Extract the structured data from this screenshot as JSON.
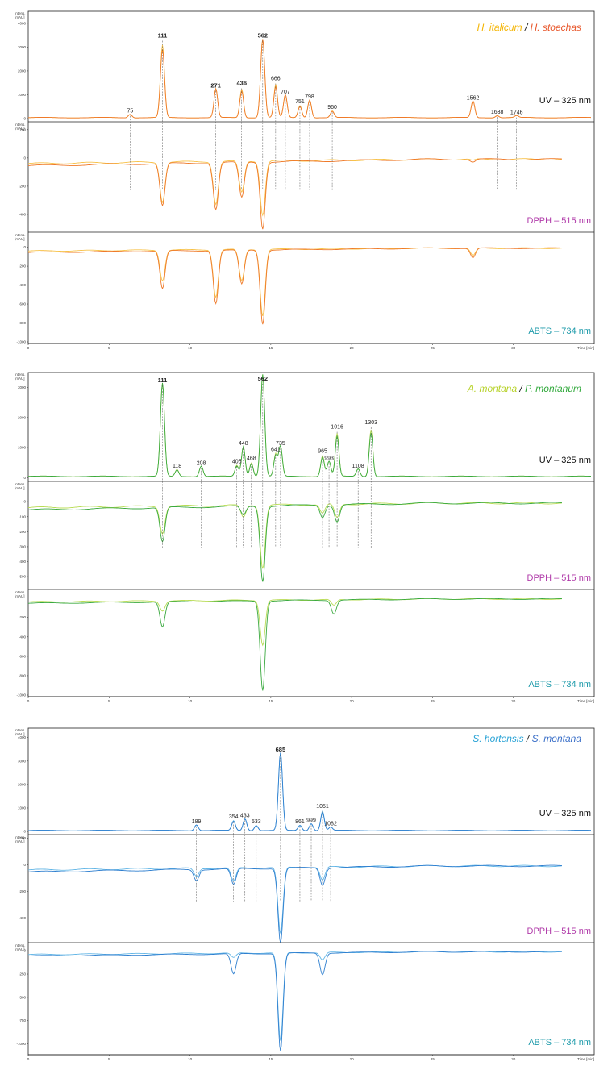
{
  "figure": {
    "y_axis_label_line1": "Intens.",
    "y_axis_label_line2": "[mAU]",
    "x_axis_label": "Time [min]",
    "x_ticks": [
      "0",
      "5",
      "10",
      "15",
      "20",
      "25",
      "30"
    ],
    "x_range": [
      0,
      35
    ],
    "colors": {
      "uv_label": "#111111",
      "dpph_label": "#b03aa9",
      "abts_label": "#1f9bab"
    }
  },
  "chart_data": [
    {
      "type": "line",
      "legend": {
        "sample_a": "H. italicum",
        "separator": " / ",
        "sample_b": "H. stoechas",
        "color_a": "#f4b400",
        "color_b": "#e8562a"
      },
      "series_colors": [
        "#f7c24a",
        "#ef7a2a"
      ],
      "detectors": [
        {
          "label": "UV – 325 nm",
          "ylim": [
            -100,
            4500
          ],
          "ticks": [
            "4000",
            "3000",
            "2000",
            "1000",
            "0"
          ],
          "tick_values": [
            4000,
            3000,
            2000,
            1000,
            0
          ]
        },
        {
          "label": "DPPH – 515 nm",
          "ylim": [
            -520,
            250
          ],
          "ticks": [
            "200",
            "0",
            "-200",
            "-400"
          ],
          "tick_values": [
            200,
            0,
            -200,
            -400
          ]
        },
        {
          "label": "ABTS – 734 nm",
          "ylim": [
            -1000,
            150
          ],
          "ticks": [
            "0",
            "-200",
            "-400",
            "-600",
            "-800",
            "-1000"
          ],
          "tick_values": [
            0,
            -200,
            -400,
            -600,
            -800,
            -1000
          ]
        }
      ],
      "peaks": [
        {
          "label": "75",
          "t": 6.3,
          "uv": 150,
          "bold": false
        },
        {
          "label": "111",
          "t": 8.3,
          "uv": 3300,
          "bold": true
        },
        {
          "label": "271",
          "t": 11.6,
          "uv": 1200,
          "bold": true
        },
        {
          "label": "436",
          "t": 13.2,
          "uv": 1300,
          "bold": true
        },
        {
          "label": "562",
          "t": 14.5,
          "uv": 3300,
          "bold": true
        },
        {
          "label": "666",
          "t": 15.3,
          "uv": 1500,
          "bold": false
        },
        {
          "label": "707",
          "t": 15.9,
          "uv": 950,
          "bold": false
        },
        {
          "label": "751",
          "t": 16.8,
          "uv": 550,
          "bold": false
        },
        {
          "label": "798",
          "t": 17.4,
          "uv": 750,
          "bold": false
        },
        {
          "label": "960",
          "t": 18.8,
          "uv": 300,
          "bold": false
        },
        {
          "label": "1562",
          "t": 27.5,
          "uv": 700,
          "bold": false
        },
        {
          "label": "1638",
          "t": 29.0,
          "uv": 100,
          "bold": false
        },
        {
          "label": "1746",
          "t": 30.2,
          "uv": 80,
          "bold": false
        }
      ],
      "dpph_dips": [
        {
          "t": 8.3,
          "a": -280,
          "b": -300
        },
        {
          "t": 11.6,
          "a": -300,
          "b": -330
        },
        {
          "t": 13.2,
          "a": -220,
          "b": -250
        },
        {
          "t": 14.5,
          "a": -380,
          "b": -470
        },
        {
          "t": 27.5,
          "a": -10,
          "b": -20
        }
      ],
      "abts_dips": [
        {
          "t": 8.3,
          "a": -320,
          "b": -400
        },
        {
          "t": 11.6,
          "a": -500,
          "b": -560
        },
        {
          "t": 13.2,
          "a": -330,
          "b": -360
        },
        {
          "t": 14.5,
          "a": -700,
          "b": -780
        },
        {
          "t": 27.5,
          "a": -80,
          "b": -100
        }
      ]
    },
    {
      "type": "line",
      "legend": {
        "sample_a": "A. montana",
        "separator": " / ",
        "sample_b": "P. montanum",
        "color_a": "#b7d22a",
        "color_b": "#2fa83a"
      },
      "series_colors": [
        "#b9dc55",
        "#3aa93f"
      ],
      "detectors": [
        {
          "label": "UV – 325 nm",
          "ylim": [
            -100,
            3500
          ],
          "ticks": [
            "3000",
            "2000",
            "1000",
            "0"
          ],
          "tick_values": [
            3000,
            2000,
            1000,
            0
          ]
        },
        {
          "label": "DPPH – 515 nm",
          "ylim": [
            -580,
            130
          ],
          "ticks": [
            "0",
            "-100",
            "-200",
            "-300",
            "-400",
            "-500"
          ],
          "tick_values": [
            0,
            -100,
            -200,
            -300,
            -400,
            -500
          ]
        },
        {
          "label": "ABTS – 734 nm",
          "ylim": [
            -1000,
            80
          ],
          "ticks": [
            "-200",
            "-400",
            "-600",
            "-800",
            "-1000"
          ],
          "tick_values": [
            -200,
            -400,
            -600,
            -800,
            -1000
          ]
        }
      ],
      "peaks": [
        {
          "label": "111",
          "t": 8.3,
          "uv": 3100,
          "bold": true
        },
        {
          "label": "118",
          "t": 9.2,
          "uv": 250,
          "bold": false
        },
        {
          "label": "208",
          "t": 10.7,
          "uv": 350,
          "bold": false
        },
        {
          "label": "405",
          "t": 12.9,
          "uv": 400,
          "bold": false
        },
        {
          "label": "448",
          "t": 13.3,
          "uv": 1000,
          "bold": false
        },
        {
          "label": "468",
          "t": 13.8,
          "uv": 500,
          "bold": false
        },
        {
          "label": "562",
          "t": 14.5,
          "uv": 3400,
          "bold": true
        },
        {
          "label": "641",
          "t": 15.3,
          "uv": 800,
          "bold": false
        },
        {
          "label": "735",
          "t": 15.6,
          "uv": 1000,
          "bold": false
        },
        {
          "label": "965",
          "t": 18.2,
          "uv": 750,
          "bold": false
        },
        {
          "label": "993",
          "t": 18.6,
          "uv": 500,
          "bold": false
        },
        {
          "label": "1016",
          "t": 19.1,
          "uv": 1550,
          "bold": false
        },
        {
          "label": "1108",
          "t": 20.4,
          "uv": 250,
          "bold": false
        },
        {
          "label": "1303",
          "t": 21.2,
          "uv": 1700,
          "bold": false
        }
      ],
      "dpph_dips": [
        {
          "t": 8.3,
          "a": -180,
          "b": -230
        },
        {
          "t": 13.3,
          "a": -80,
          "b": -60
        },
        {
          "t": 14.5,
          "a": -420,
          "b": -500
        },
        {
          "t": 18.2,
          "a": -60,
          "b": -80
        },
        {
          "t": 19.1,
          "a": -90,
          "b": -110
        }
      ],
      "abts_dips": [
        {
          "t": 8.3,
          "a": -100,
          "b": -260
        },
        {
          "t": 14.5,
          "a": -460,
          "b": -920
        },
        {
          "t": 18.9,
          "a": -60,
          "b": -140
        }
      ]
    },
    {
      "type": "line",
      "legend": {
        "sample_a": "S. hortensis",
        "separator": " / ",
        "sample_b": "S. montana",
        "color_a": "#2aa3d6",
        "color_b": "#3a6fc8"
      },
      "series_colors": [
        "#63b6e6",
        "#2f7fcf"
      ],
      "detectors": [
        {
          "label": "UV – 325 nm",
          "ylim": [
            -100,
            4400
          ],
          "ticks": [
            "4000",
            "3000",
            "2000",
            "1000",
            "0"
          ],
          "tick_values": [
            4000,
            3000,
            2000,
            1000,
            0
          ]
        },
        {
          "label": "DPPH – 515 nm",
          "ylim": [
            -580,
            220
          ],
          "ticks": [
            "200",
            "0",
            "-200",
            "-400"
          ],
          "tick_values": [
            200,
            0,
            -200,
            -400
          ]
        },
        {
          "label": "ABTS – 734 nm",
          "ylim": [
            -1100,
            80
          ],
          "ticks": [
            "0",
            "-250",
            "-500",
            "-750",
            "-1000"
          ],
          "tick_values": [
            0,
            -250,
            -500,
            -750,
            -1000
          ]
        }
      ],
      "peaks": [
        {
          "label": "189",
          "t": 10.4,
          "uv": 250,
          "bold": false
        },
        {
          "label": "354",
          "t": 12.7,
          "uv": 450,
          "bold": false
        },
        {
          "label": "433",
          "t": 13.4,
          "uv": 500,
          "bold": false
        },
        {
          "label": "533",
          "t": 14.1,
          "uv": 250,
          "bold": false
        },
        {
          "label": "685",
          "t": 15.6,
          "uv": 3300,
          "bold": true
        },
        {
          "label": "861",
          "t": 16.8,
          "uv": 250,
          "bold": false
        },
        {
          "label": "999",
          "t": 17.5,
          "uv": 300,
          "bold": false
        },
        {
          "label": "1051",
          "t": 18.2,
          "uv": 900,
          "bold": false
        },
        {
          "label": "1082",
          "t": 18.7,
          "uv": 150,
          "bold": false
        }
      ],
      "dpph_dips": [
        {
          "t": 10.4,
          "a": -60,
          "b": -80
        },
        {
          "t": 12.7,
          "a": -100,
          "b": -120
        },
        {
          "t": 15.6,
          "a": -500,
          "b": -560
        },
        {
          "t": 18.2,
          "a": -100,
          "b": -130
        }
      ],
      "abts_dips": [
        {
          "t": 12.7,
          "a": -50,
          "b": -220
        },
        {
          "t": 15.6,
          "a": -950,
          "b": -1050
        },
        {
          "t": 18.2,
          "a": -80,
          "b": -230
        }
      ]
    }
  ]
}
